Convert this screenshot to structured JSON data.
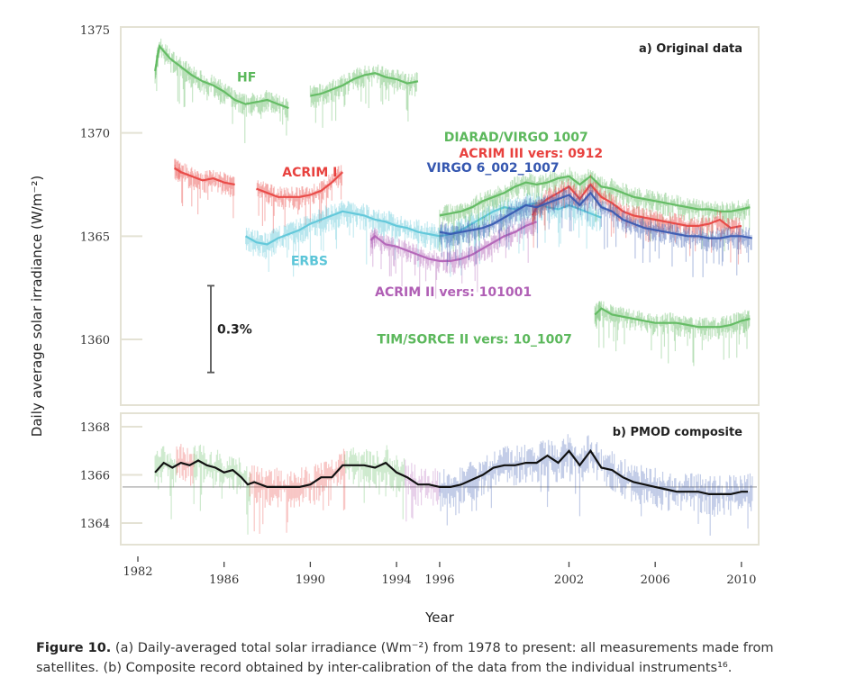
{
  "chart_data": [
    {
      "type": "line",
      "panel": "a",
      "title": "a) Original data",
      "xlabel": "Year",
      "ylabel": "Daily average solar irradiance (W/m⁻²)",
      "xlim": [
        1982,
        2010.8
      ],
      "ylim": [
        1357,
        1375.5
      ],
      "yticks": [
        1360,
        1365,
        1370,
        1375
      ],
      "grid": false,
      "scale_bar": {
        "label": "0.3%",
        "from": 1358.4,
        "to": 1362.6
      },
      "series": [
        {
          "name": "HF",
          "color": "#5cb85c",
          "x": [
            1982.8,
            1983.0,
            1983.5,
            1984.0,
            1984.5,
            1985.0,
            1985.5,
            1986.0,
            1986.5,
            1987.0,
            1987.5,
            1988.0,
            1988.5,
            1989.0,
            1989.5,
            1990.0,
            1990.5,
            1991.0,
            1991.5,
            1992.0,
            1992.5,
            1993.0,
            1993.5,
            1994.0,
            1994.5,
            1995.0
          ],
          "y": [
            1373.0,
            1374.2,
            1373.6,
            1373.2,
            1372.8,
            1372.5,
            1372.3,
            1372.0,
            1371.6,
            1371.4,
            1371.5,
            1371.6,
            1371.4,
            1371.2,
            null,
            1371.8,
            1371.9,
            1372.1,
            1372.3,
            1372.6,
            1372.8,
            1372.9,
            1372.7,
            1372.6,
            1372.4,
            1372.5
          ],
          "label_at": [
            1986.6,
            1372.5
          ]
        },
        {
          "name": "ACRIM I",
          "color": "#e8413e",
          "x": [
            1983.7,
            1984.0,
            1984.5,
            1985.0,
            1985.5,
            1986.0,
            1986.5,
            1987.0,
            1987.5,
            1988.0,
            1988.5,
            1989.0,
            1989.5,
            1990.0,
            1990.5,
            1991.0,
            1991.5
          ],
          "y": [
            1368.3,
            1368.1,
            1367.9,
            1367.7,
            1367.8,
            1367.6,
            1367.5,
            null,
            1367.3,
            1367.1,
            1366.9,
            1366.9,
            1366.9,
            1367.0,
            1367.2,
            1367.6,
            1368.1
          ],
          "label_at": [
            1988.7,
            1367.9
          ]
        },
        {
          "name": "ERBS",
          "color": "#5bc5d8",
          "x": [
            1987.0,
            1987.5,
            1988.0,
            1988.5,
            1989.0,
            1989.5,
            1990.0,
            1990.5,
            1991.0,
            1991.5,
            1992.0,
            1992.5,
            1993.0,
            1993.5,
            1994.0,
            1994.5,
            1995.0,
            1995.5,
            1996.0,
            1996.5,
            1997.0,
            1997.5,
            1998.0,
            1998.5,
            1999.0,
            1999.5,
            2000.0,
            2000.5,
            2001.0,
            2001.5,
            2002.0,
            2002.5,
            2003.0,
            2003.5
          ],
          "y": [
            1365.0,
            1364.7,
            1364.6,
            1364.9,
            1365.1,
            1365.3,
            1365.6,
            1365.8,
            1366.0,
            1366.2,
            1366.1,
            1366.0,
            1365.8,
            1365.7,
            1365.5,
            1365.4,
            1365.2,
            1365.1,
            1365.0,
            1365.1,
            1365.3,
            1365.6,
            1365.9,
            1366.2,
            1366.4,
            1366.3,
            1366.5,
            1366.6,
            1366.4,
            1366.3,
            1366.5,
            1366.3,
            1366.1,
            1365.9
          ],
          "label_at": [
            1989.1,
            1363.6
          ]
        },
        {
          "name": "ACRIM II vers: 101001",
          "color": "#b05fb5",
          "x": [
            1992.8,
            1993.0,
            1993.5,
            1994.0,
            1994.5,
            1995.0,
            1995.5,
            1996.0,
            1996.5,
            1997.0,
            1997.5,
            1998.0,
            1998.5,
            1999.0,
            1999.5,
            2000.0,
            2000.5
          ],
          "y": [
            1364.8,
            1365.0,
            1364.6,
            1364.5,
            1364.3,
            1364.1,
            1363.9,
            1363.8,
            1363.8,
            1363.9,
            1364.1,
            1364.4,
            1364.7,
            1365.0,
            1365.2,
            1365.5,
            1365.7
          ],
          "label_at": [
            1993.0,
            1362.1
          ]
        },
        {
          "name": "DIARAD/VIRGO 1007",
          "color": "#5cb85c",
          "x": [
            1996.0,
            1996.5,
            1997.0,
            1997.5,
            1998.0,
            1998.5,
            1999.0,
            1999.5,
            2000.0,
            2000.5,
            2001.0,
            2001.5,
            2002.0,
            2002.5,
            2003.0,
            2003.5,
            2004.0,
            2004.5,
            2005.0,
            2005.5,
            2006.0,
            2006.5,
            2007.0,
            2007.5,
            2008.0,
            2008.5,
            2009.0,
            2009.5,
            2010.0,
            2010.4
          ],
          "y": [
            1366.0,
            1366.1,
            1366.2,
            1366.4,
            1366.7,
            1366.9,
            1367.1,
            1367.4,
            1367.6,
            1367.5,
            1367.6,
            1367.8,
            1367.9,
            1367.5,
            1367.9,
            1367.4,
            1367.3,
            1367.1,
            1366.9,
            1366.8,
            1366.7,
            1366.6,
            1366.5,
            1366.4,
            1366.3,
            1366.3,
            1366.2,
            1366.2,
            1366.3,
            1366.4
          ],
          "label_at": [
            1996.2,
            1369.6
          ]
        },
        {
          "name": "ACRIM III vers: 0912",
          "color": "#e8413e",
          "x": [
            2000.3,
            2000.5,
            2001.0,
            2001.5,
            2002.0,
            2002.5,
            2003.0,
            2003.5,
            2004.0,
            2004.5,
            2005.0,
            2005.5,
            2006.0,
            2006.5,
            2007.0,
            2007.5,
            2008.0,
            2008.5,
            2009.0,
            2009.5,
            2010.0
          ],
          "y": [
            1366.0,
            1366.4,
            1366.8,
            1367.1,
            1367.4,
            1366.8,
            1367.5,
            1366.9,
            1366.6,
            1366.2,
            1366.0,
            1365.9,
            1365.8,
            1365.7,
            1365.6,
            1365.5,
            1365.5,
            1365.6,
            1365.8,
            1365.4,
            1365.5
          ],
          "label_at": [
            1996.9,
            1368.8
          ]
        },
        {
          "name": "VIRGO 6_002_1007",
          "color": "#3557b0",
          "x": [
            1996.0,
            1996.5,
            1997.0,
            1997.5,
            1998.0,
            1998.5,
            1999.0,
            1999.5,
            2000.0,
            2000.5,
            2001.0,
            2001.5,
            2002.0,
            2002.5,
            2003.0,
            2003.5,
            2004.0,
            2004.5,
            2005.0,
            2005.5,
            2006.0,
            2006.5,
            2007.0,
            2007.5,
            2008.0,
            2008.5,
            2009.0,
            2009.5,
            2010.0,
            2010.5
          ],
          "y": [
            1365.2,
            1365.1,
            1365.2,
            1365.3,
            1365.4,
            1365.6,
            1365.9,
            1366.2,
            1366.5,
            1366.4,
            1366.6,
            1366.8,
            1367.0,
            1366.5,
            1367.1,
            1366.4,
            1366.2,
            1365.8,
            1365.6,
            1365.4,
            1365.3,
            1365.2,
            1365.1,
            1365.0,
            1365.0,
            1364.9,
            1364.9,
            1365.0,
            1365.0,
            1364.9
          ],
          "label_at": [
            1995.4,
            1368.1
          ]
        },
        {
          "name": "TIM/SORCE II vers: 10_1007",
          "color": "#5cb85c",
          "x": [
            2003.2,
            2003.5,
            2004.0,
            2004.5,
            2005.0,
            2005.5,
            2006.0,
            2006.5,
            2007.0,
            2007.5,
            2008.0,
            2008.5,
            2009.0,
            2009.5,
            2010.0,
            2010.4
          ],
          "y": [
            1361.2,
            1361.5,
            1361.2,
            1361.1,
            1361.0,
            1360.9,
            1360.8,
            1360.8,
            1360.8,
            1360.7,
            1360.6,
            1360.6,
            1360.6,
            1360.7,
            1360.9,
            1361.0
          ],
          "label_at": [
            1993.1,
            1359.8
          ]
        }
      ]
    },
    {
      "type": "line",
      "panel": "b",
      "title": "b) PMOD composite",
      "xlabel": "Year",
      "ylabel": "Daily average solar irradiance (W/m⁻²)",
      "xlim": [
        1982,
        2010.8
      ],
      "ylim": [
        1362.9,
        1368.6
      ],
      "yticks": [
        1364,
        1366,
        1368
      ],
      "xticks": [
        1982,
        1986,
        1990,
        1994,
        1996,
        2002,
        2006,
        2010
      ],
      "xtick_labels": [
        "1982",
        "1986",
        "1990",
        "1994",
        "1996",
        "2002",
        "2006",
        "2010"
      ],
      "reference_line": {
        "y": 1365.5,
        "color": "#b8b8b8"
      },
      "source_segments": [
        {
          "color": "#5cb85c",
          "x_range": [
            1982.8,
            1983.8
          ]
        },
        {
          "color": "#e8413e",
          "x_range": [
            1983.8,
            1984.6
          ]
        },
        {
          "color": "#5cb85c",
          "x_range": [
            1984.6,
            1987.2
          ]
        },
        {
          "color": "#e8413e",
          "x_range": [
            1987.2,
            1991.6
          ]
        },
        {
          "color": "#5cb85c",
          "x_range": [
            1991.6,
            1994.4
          ]
        },
        {
          "color": "#b05fb5",
          "x_range": [
            1994.4,
            1996.0
          ]
        },
        {
          "color": "#3557b0",
          "x_range": [
            1996.0,
            2010.5
          ]
        }
      ],
      "series": [
        {
          "name": "PMOD composite (smoothed)",
          "color": "#111111",
          "x": [
            1982.8,
            1983.2,
            1983.6,
            1984.0,
            1984.4,
            1984.8,
            1985.2,
            1985.6,
            1986.0,
            1986.4,
            1986.8,
            1987.1,
            1987.4,
            1988.0,
            1988.5,
            1989.0,
            1989.5,
            1990.0,
            1990.5,
            1991.0,
            1991.5,
            1992.0,
            1992.5,
            1993.0,
            1993.5,
            1994.0,
            1994.5,
            1995.0,
            1995.5,
            1996.0,
            1996.5,
            1997.0,
            1997.5,
            1998.0,
            1998.5,
            1999.0,
            1999.5,
            2000.0,
            2000.5,
            2001.0,
            2001.5,
            2002.0,
            2002.5,
            2003.0,
            2003.5,
            2004.0,
            2004.5,
            2005.0,
            2005.5,
            2006.0,
            2006.5,
            2007.0,
            2007.5,
            2008.0,
            2008.5,
            2009.0,
            2009.5,
            2010.0,
            2010.3
          ],
          "y": [
            1366.1,
            1366.5,
            1366.3,
            1366.5,
            1366.4,
            1366.6,
            1366.4,
            1366.3,
            1366.1,
            1366.2,
            1365.9,
            1365.6,
            1365.7,
            1365.5,
            1365.5,
            1365.5,
            1365.5,
            1365.6,
            1365.9,
            1365.9,
            1366.4,
            1366.4,
            1366.4,
            1366.3,
            1366.5,
            1366.1,
            1365.9,
            1365.6,
            1365.6,
            1365.5,
            1365.5,
            1365.6,
            1365.8,
            1366.0,
            1366.3,
            1366.4,
            1366.4,
            1366.5,
            1366.5,
            1366.8,
            1366.5,
            1367.0,
            1366.4,
            1367.0,
            1366.3,
            1366.2,
            1365.9,
            1365.7,
            1365.6,
            1365.5,
            1365.4,
            1365.3,
            1365.3,
            1365.3,
            1365.2,
            1365.2,
            1365.2,
            1365.3,
            1365.3
          ]
        }
      ]
    }
  ],
  "caption": {
    "figure_label": "Figure 10.",
    "line1": " (a) Daily-averaged total solar irradiance (Wm⁻²) from 1978 to present: all measurements made from",
    "line2": "satellites. (b) Composite record obtained by inter-calibration of the data from the individual instruments¹⁶."
  }
}
